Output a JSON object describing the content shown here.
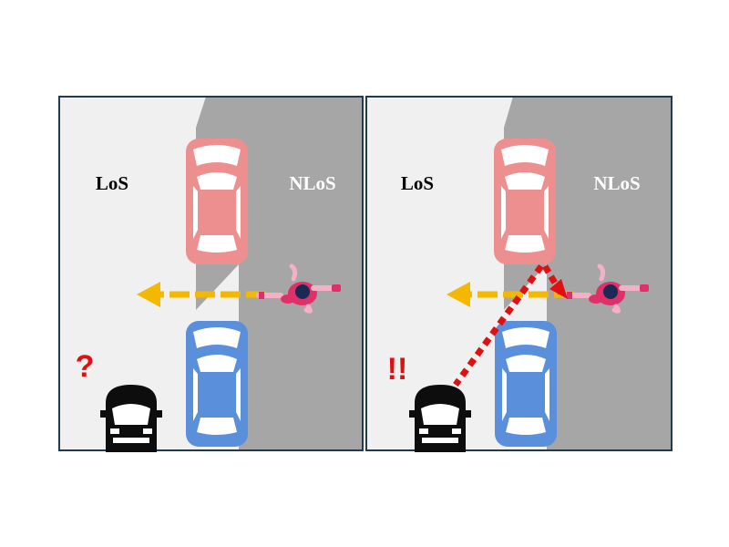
{
  "panels": [
    {
      "id": "left",
      "los_label": "LoS",
      "nlos_label": "NLoS",
      "alert": "?",
      "shows_reflection_path": false
    },
    {
      "id": "right",
      "los_label": "LoS",
      "nlos_label": "NLoS",
      "alert": "!!",
      "shows_reflection_path": true
    }
  ],
  "colors": {
    "los_area": "#f0f0f0",
    "nlos_area": "#a6a6a6",
    "panel_border": "#1f3b4d",
    "parked_car_top": "#ee8f8f",
    "parked_car_bottom": "#5a8fdc",
    "ego_car": "#0d0d0d",
    "pedestrian_path": "#f5b800",
    "reflection_path": "#e01010",
    "alert_text": "#e01010",
    "pedestrian_top": "#e0306a",
    "pedestrian_skin": "#f4b0c4",
    "pedestrian_head": "#1a2a55"
  },
  "icons": {
    "parked_car": "car-top-view-icon",
    "ego_car": "car-front-icon",
    "pedestrian": "running-pedestrian-icon",
    "arrow": "arrow-left-icon"
  }
}
